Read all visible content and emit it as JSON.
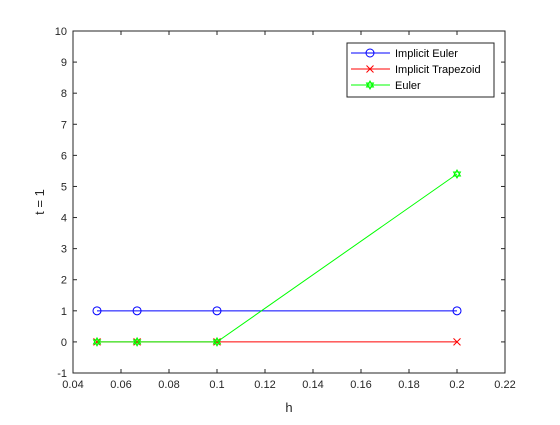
{
  "chart_data": {
    "type": "line",
    "xlabel": "h",
    "ylabel": "t = 1",
    "xlim": [
      0.04,
      0.22
    ],
    "ylim": [
      -1,
      10
    ],
    "xticks": [
      "0.04",
      "0.06",
      "0.08",
      "0.1",
      "0.12",
      "0.14",
      "0.16",
      "0.18",
      "0.2",
      "0.22"
    ],
    "yticks": [
      "-1",
      "0",
      "1",
      "2",
      "3",
      "4",
      "5",
      "6",
      "7",
      "8",
      "9",
      "10"
    ],
    "x": [
      0.05,
      0.0667,
      0.1,
      0.2
    ],
    "grid": false,
    "legend_position": "top-right",
    "series": [
      {
        "name": "Implicit Euler",
        "values": [
          1,
          1,
          1,
          1
        ],
        "color": "#0000ff",
        "marker": "circle"
      },
      {
        "name": "Implicit Trapezoid",
        "values": [
          0,
          0,
          0,
          0
        ],
        "color": "#ff0000",
        "marker": "x"
      },
      {
        "name": "Euler",
        "values": [
          0,
          0,
          0,
          5.4
        ],
        "color": "#00ff00",
        "marker": "hexagram"
      }
    ]
  }
}
